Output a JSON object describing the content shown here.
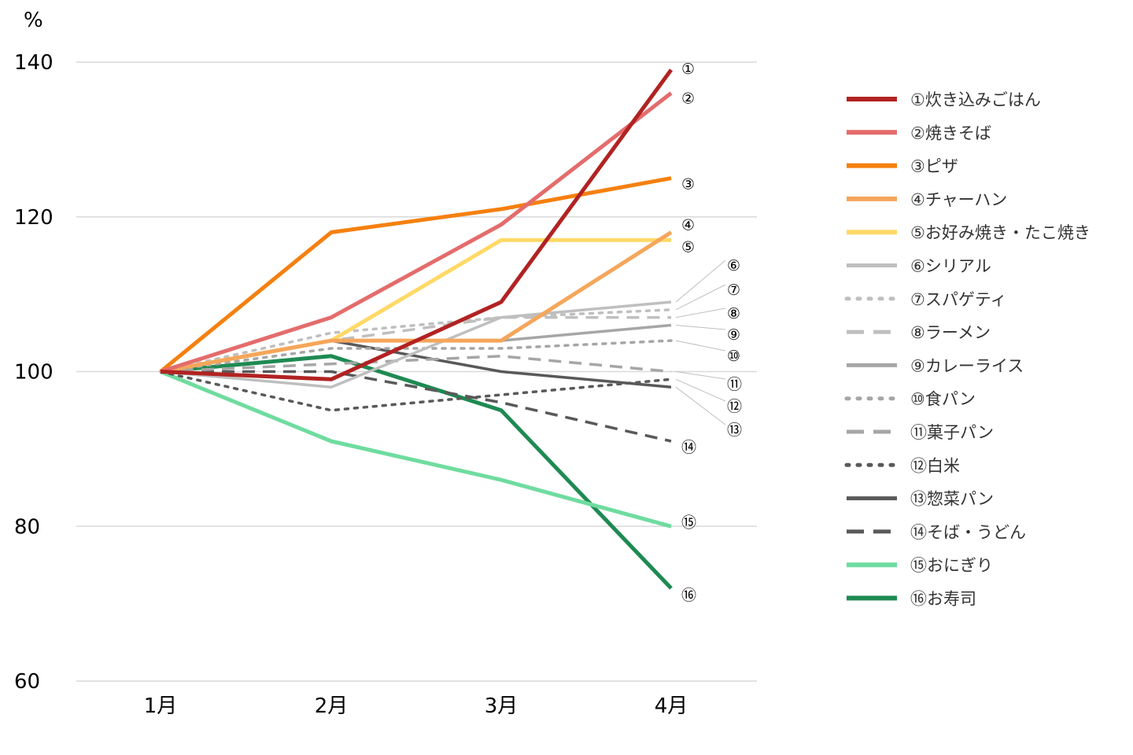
{
  "chart_data": {
    "type": "line",
    "unit_label": "%",
    "categories": [
      "1月",
      "2月",
      "3月",
      "4月"
    ],
    "ylim": [
      60,
      140
    ],
    "yticks": [
      60,
      80,
      100,
      120,
      140
    ],
    "grid": true,
    "legend_position": "right",
    "series": [
      {
        "marker": "①",
        "name": "①炊き込みごはん",
        "values": [
          100,
          99,
          109,
          139
        ],
        "color": "#b22222",
        "style": "solid",
        "width": 5
      },
      {
        "marker": "②",
        "name": "②焼きそば",
        "values": [
          100,
          107,
          119,
          136
        ],
        "color": "#e46c6c",
        "style": "solid",
        "width": 5
      },
      {
        "marker": "③",
        "name": "③ピザ",
        "values": [
          100,
          118,
          121,
          125
        ],
        "color": "#f5800f",
        "style": "solid",
        "width": 5
      },
      {
        "marker": "④",
        "name": "④チャーハン",
        "values": [
          100,
          104,
          104,
          118
        ],
        "color": "#f5a65b",
        "style": "solid",
        "width": 5
      },
      {
        "marker": "⑤",
        "name": "⑤お好み焼き・たこ焼き",
        "values": [
          100,
          104,
          117,
          117
        ],
        "color": "#ffd966",
        "style": "solid",
        "width": 5
      },
      {
        "marker": "⑥",
        "name": "⑥シリアル",
        "values": [
          100,
          98,
          107,
          109
        ],
        "color": "#bfbfbf",
        "style": "solid",
        "width": 3.5
      },
      {
        "marker": "⑦",
        "name": "⑦スパゲティ",
        "values": [
          100,
          105,
          107,
          108
        ],
        "color": "#bfbfbf",
        "style": "dot",
        "width": 3.5
      },
      {
        "marker": "⑧",
        "name": "⑧ラーメン",
        "values": [
          100,
          104,
          107,
          107
        ],
        "color": "#bfbfbf",
        "style": "dash",
        "width": 3.5
      },
      {
        "marker": "⑨",
        "name": "⑨カレーライス",
        "values": [
          100,
          104,
          104,
          106
        ],
        "color": "#a6a6a6",
        "style": "solid",
        "width": 3.5
      },
      {
        "marker": "⑩",
        "name": "⑩食パン",
        "values": [
          100,
          103,
          103,
          104
        ],
        "color": "#a6a6a6",
        "style": "dot",
        "width": 3.5
      },
      {
        "marker": "⑪",
        "name": "⑪菓子パン",
        "values": [
          100,
          101,
          102,
          100
        ],
        "color": "#a6a6a6",
        "style": "dash",
        "width": 3.5
      },
      {
        "marker": "⑫",
        "name": "⑫白米",
        "values": [
          100,
          95,
          97,
          99
        ],
        "color": "#595959",
        "style": "dot",
        "width": 3.5
      },
      {
        "marker": "⑬",
        "name": "⑬惣菜パン",
        "values": [
          100,
          104,
          100,
          98
        ],
        "color": "#595959",
        "style": "solid",
        "width": 3.5
      },
      {
        "marker": "⑭",
        "name": "⑭そば・うどん",
        "values": [
          100,
          100,
          96,
          91
        ],
        "color": "#595959",
        "style": "dash",
        "width": 3.5
      },
      {
        "marker": "⑮",
        "name": "⑮おにぎり",
        "values": [
          100,
          91,
          86,
          80
        ],
        "color": "#6fdc9f",
        "style": "solid",
        "width": 5
      },
      {
        "marker": "⑯",
        "name": "⑯お寿司",
        "values": [
          100,
          102,
          95,
          72
        ],
        "color": "#1e8a52",
        "style": "solid",
        "width": 5
      }
    ]
  }
}
